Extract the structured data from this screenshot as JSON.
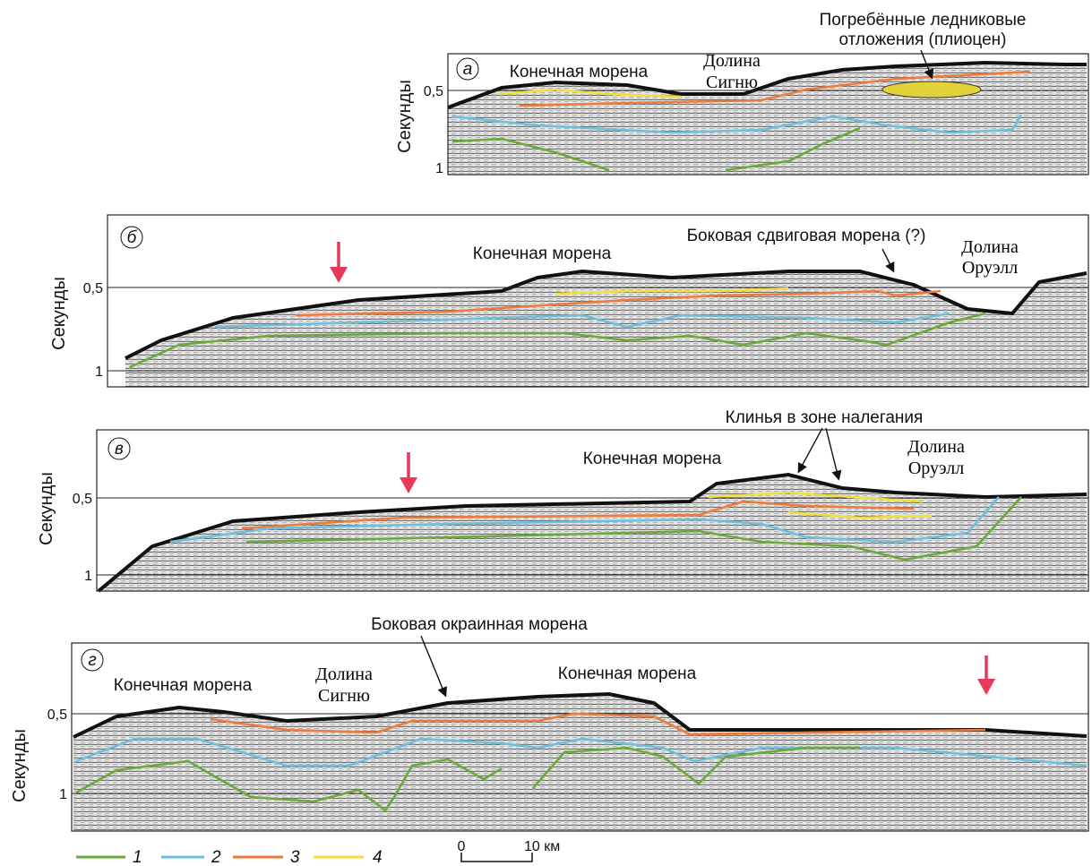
{
  "panels": [
    {
      "letter": "а",
      "y_axis_label": "Секунды",
      "y_ticks": [
        "0,5",
        "1"
      ],
      "annotations": [
        "Конечная морена",
        "Долина",
        "Сигню",
        "Погребённые ледниковые",
        "отложения (плиоцен)"
      ]
    },
    {
      "letter": "б",
      "y_axis_label": "Секунды",
      "y_ticks": [
        "0,5",
        "1"
      ],
      "annotations": [
        "Конечная морена",
        "Боковая сдвиговая морена (?)",
        "Долина",
        "Оруэлл"
      ]
    },
    {
      "letter": "в",
      "y_axis_label": "Секунды",
      "y_ticks": [
        "0,5",
        "1"
      ],
      "annotations": [
        "Клинья в зоне налегания",
        "Конечная морена",
        "Долина",
        "Оруэлл"
      ]
    },
    {
      "letter": "г",
      "y_axis_label": "Секунды",
      "y_ticks": [
        "0,5",
        "1"
      ],
      "annotations": [
        "Боковая окраинная морена",
        "Конечная морена",
        "Долина",
        "Сигню",
        "Конечная морена"
      ]
    }
  ],
  "legend": [
    {
      "label": "1",
      "color": "#6aaa3a"
    },
    {
      "label": "2",
      "color": "#6cc0dd"
    },
    {
      "label": "3",
      "color": "#f07a3a"
    },
    {
      "label": "4",
      "color": "#f2df3a"
    }
  ],
  "scale_bar": {
    "start": "0",
    "end": "10 км"
  }
}
